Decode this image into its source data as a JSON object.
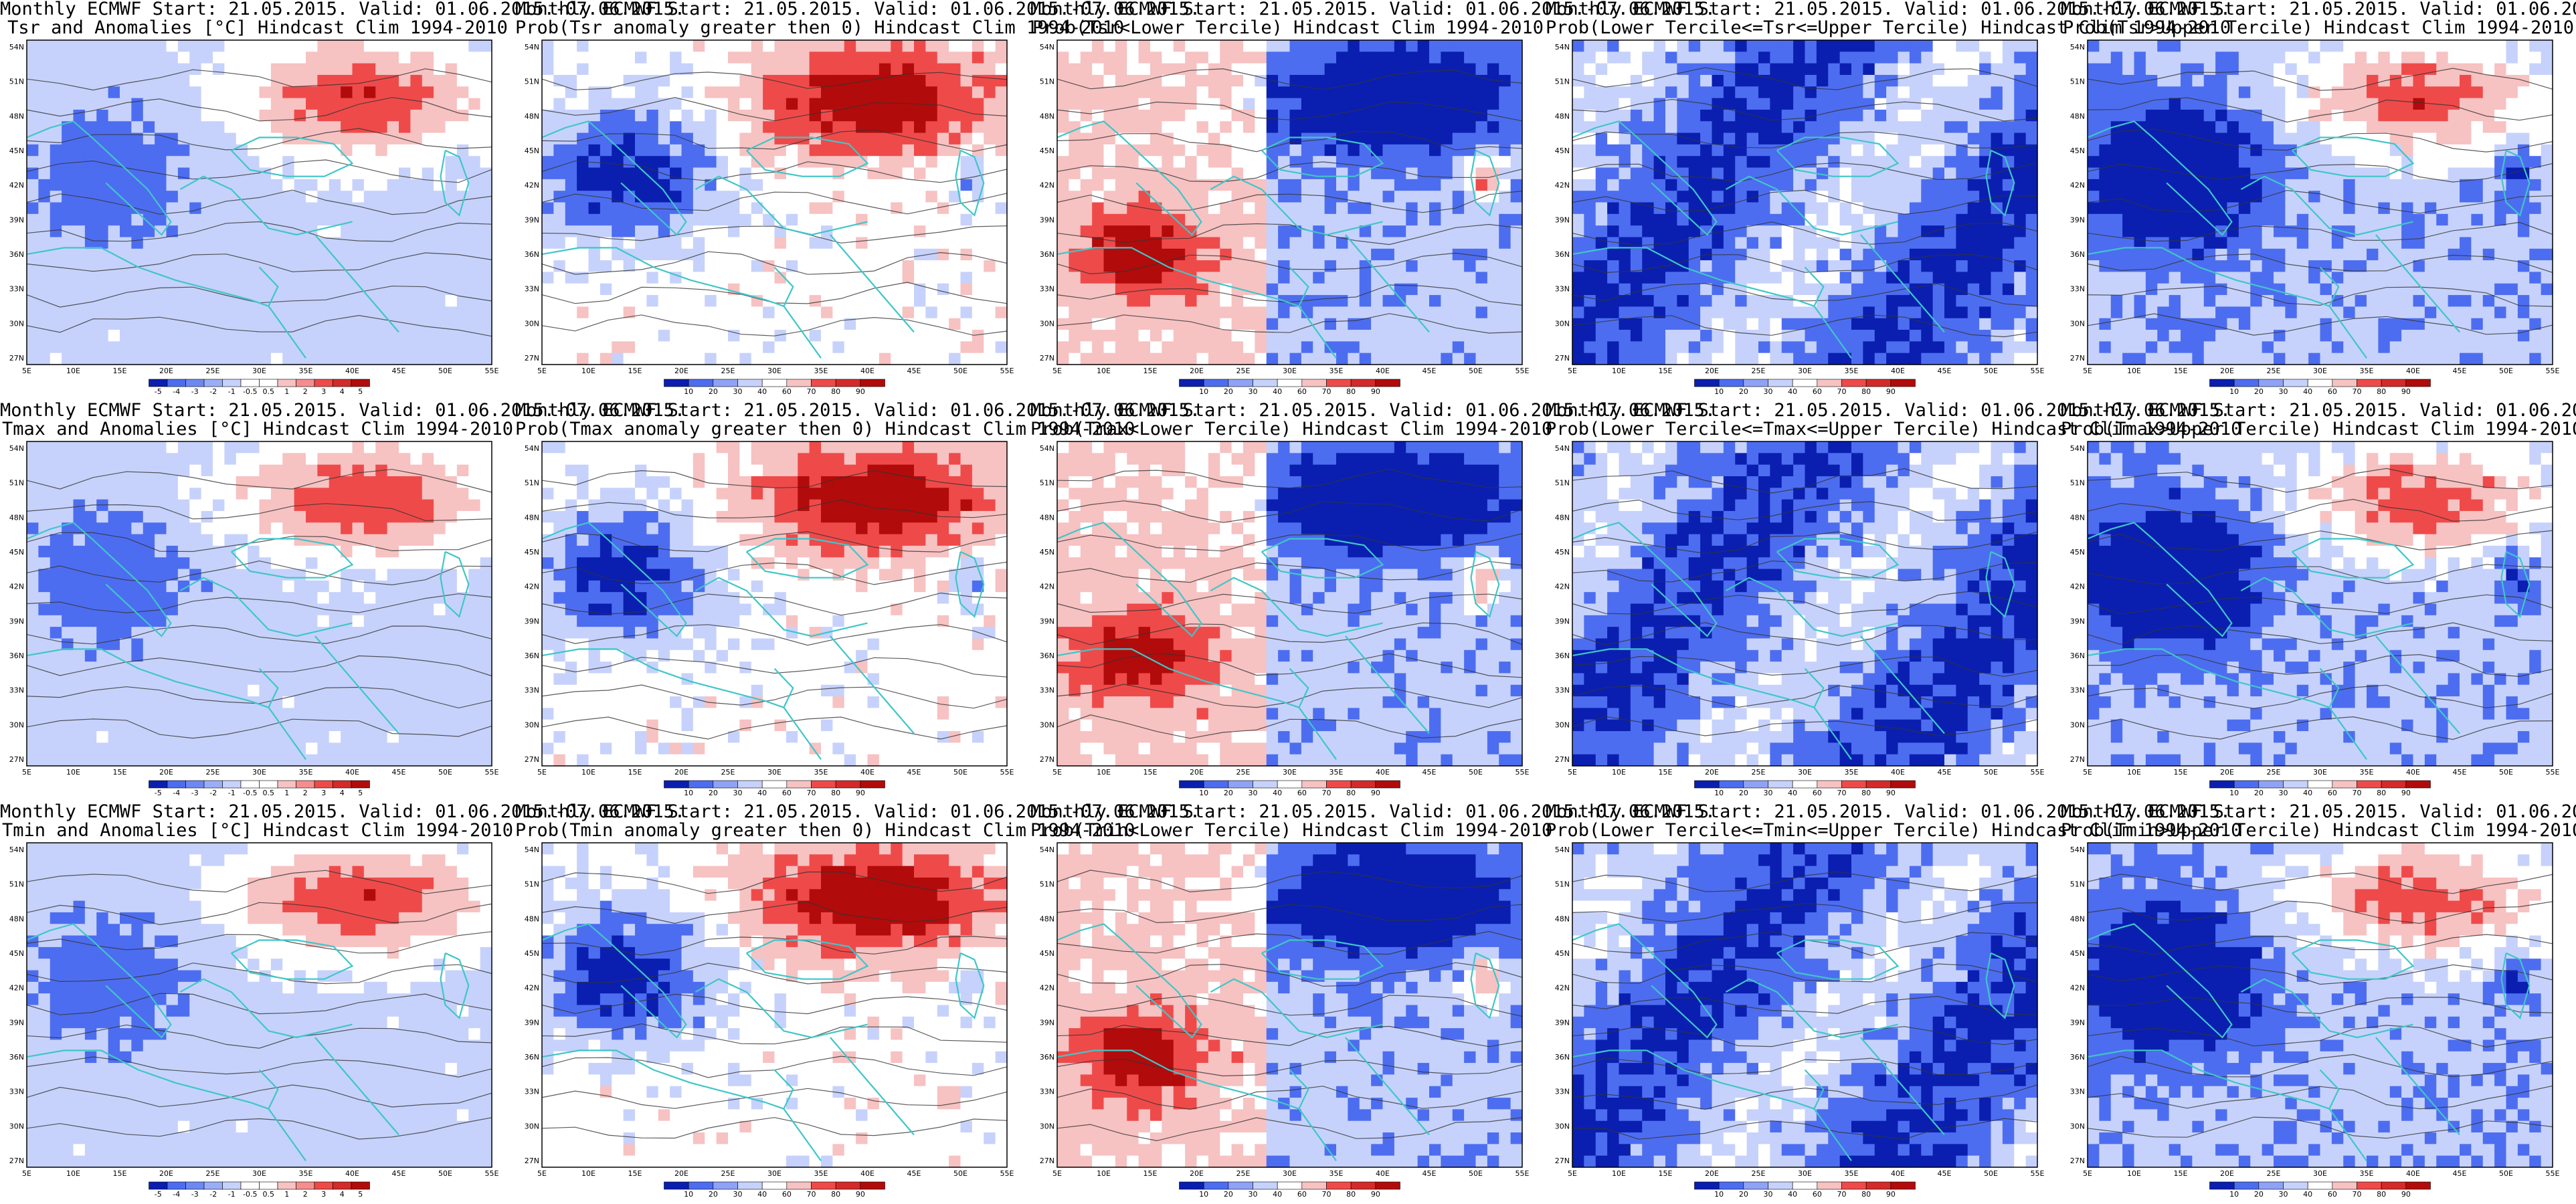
{
  "header_line": "Monthly ECMWF Start: 21.05.2015. Valid: 01.06.2015.-07.06.2015.",
  "colors": {
    "coast": "#3fc6c8",
    "border_dark": "#4a4a4a",
    "contour": "#333333",
    "blue_dark": "#0a1fb0",
    "blue_mid": "#4d6df0",
    "blue_light": "#c6d2fb",
    "red_light": "#f7c2c2",
    "red_mid": "#ef4a4a",
    "red_dark": "#b20b0b"
  },
  "map_axes": {
    "lon_labels": [
      "5E",
      "10E",
      "15E",
      "20E",
      "25E",
      "30E",
      "35E",
      "40E",
      "45E",
      "50E",
      "55E"
    ],
    "lat_labels": [
      "54N",
      "51N",
      "48N",
      "45N",
      "42N",
      "39N",
      "36N",
      "33N",
      "30N",
      "27N"
    ]
  },
  "colorbars": {
    "anom": [
      "-5",
      "-4",
      "-3",
      "-2",
      "-1",
      "-0.5",
      "0.5",
      "1",
      "2",
      "3",
      "4",
      "5"
    ],
    "prob": [
      "10",
      "20",
      "30",
      "40",
      "60",
      "70",
      "80",
      "90"
    ]
  },
  "panels": [
    {
      "id": "tsr-anom",
      "title": "Tsr and Anomalies [°C] Hindcast Clim 1994-2010",
      "kind": "anom",
      "pattern": "mean",
      "colorbar": true
    },
    {
      "id": "tsr-prob-pos",
      "title": "Prob(Tsr anomaly greater then 0) Hindcast Clim 1994-2010",
      "kind": "prob",
      "pattern": "pos",
      "colorbar": true
    },
    {
      "id": "tsr-prob-lower",
      "title": "Prob(Tsr<Lower Tercile) Hindcast Clim 1994-2010",
      "kind": "prob",
      "pattern": "lower",
      "colorbar": true
    },
    {
      "id": "tsr-prob-middle",
      "title": "Prob(Lower Tercile<=Tsr<=Upper Tercile) Hindcast Clim 1994-2010",
      "kind": "prob",
      "pattern": "middle",
      "colorbar": true
    },
    {
      "id": "tsr-prob-upper",
      "title": "Prob(Tsr>Upper Tercile) Hindcast Clim 1994-2010",
      "kind": "prob",
      "pattern": "upper",
      "colorbar": true
    },
    {
      "id": "tmax-anom",
      "title": "Tmax and Anomalies [°C] Hindcast Clim 1994-2010",
      "kind": "anom",
      "pattern": "mean",
      "colorbar": true
    },
    {
      "id": "tmax-prob-pos",
      "title": "Prob(Tmax anomaly greater then 0) Hindcast Clim 1994-2010",
      "kind": "prob",
      "pattern": "pos",
      "colorbar": true
    },
    {
      "id": "tmax-prob-lower",
      "title": "Prob(Tmax<Lower Tercile) Hindcast Clim 1994-2010",
      "kind": "prob",
      "pattern": "lower",
      "colorbar": true
    },
    {
      "id": "tmax-prob-middle",
      "title": "Prob(Lower Tercile<=Tmax<=Upper Tercile) Hindcast Clim 1994-2010",
      "kind": "prob",
      "pattern": "middle",
      "colorbar": true
    },
    {
      "id": "tmax-prob-upper",
      "title": "Prob(Tmax>Upper Tercile) Hindcast Clim 1994-2010",
      "kind": "prob",
      "pattern": "upper",
      "colorbar": true
    },
    {
      "id": "tmin-anom",
      "title": "Tmin and Anomalies [°C] Hindcast Clim 1994-2010",
      "kind": "anom",
      "pattern": "mean",
      "colorbar": true
    },
    {
      "id": "tmin-prob-pos",
      "title": "Prob(Tmin anomaly greater then 0) Hindcast Clim 1994-2010",
      "kind": "prob",
      "pattern": "pos",
      "colorbar": true
    },
    {
      "id": "tmin-prob-lower",
      "title": "Prob(Tmin<Lower Tercile) Hindcast Clim 1994-2010",
      "kind": "prob",
      "pattern": "lower",
      "colorbar": true
    },
    {
      "id": "tmin-prob-middle",
      "title": "Prob(Lower Tercile<=Tmin<=Upper Tercile) Hindcast Clim 1994-2010",
      "kind": "prob",
      "pattern": "middle",
      "colorbar": true
    },
    {
      "id": "tmin-prob-upper",
      "title": "Prob(Tmin>Upper Tercile) Hindcast Clim 1994-2010",
      "kind": "prob",
      "pattern": "upper",
      "colorbar": true
    }
  ]
}
